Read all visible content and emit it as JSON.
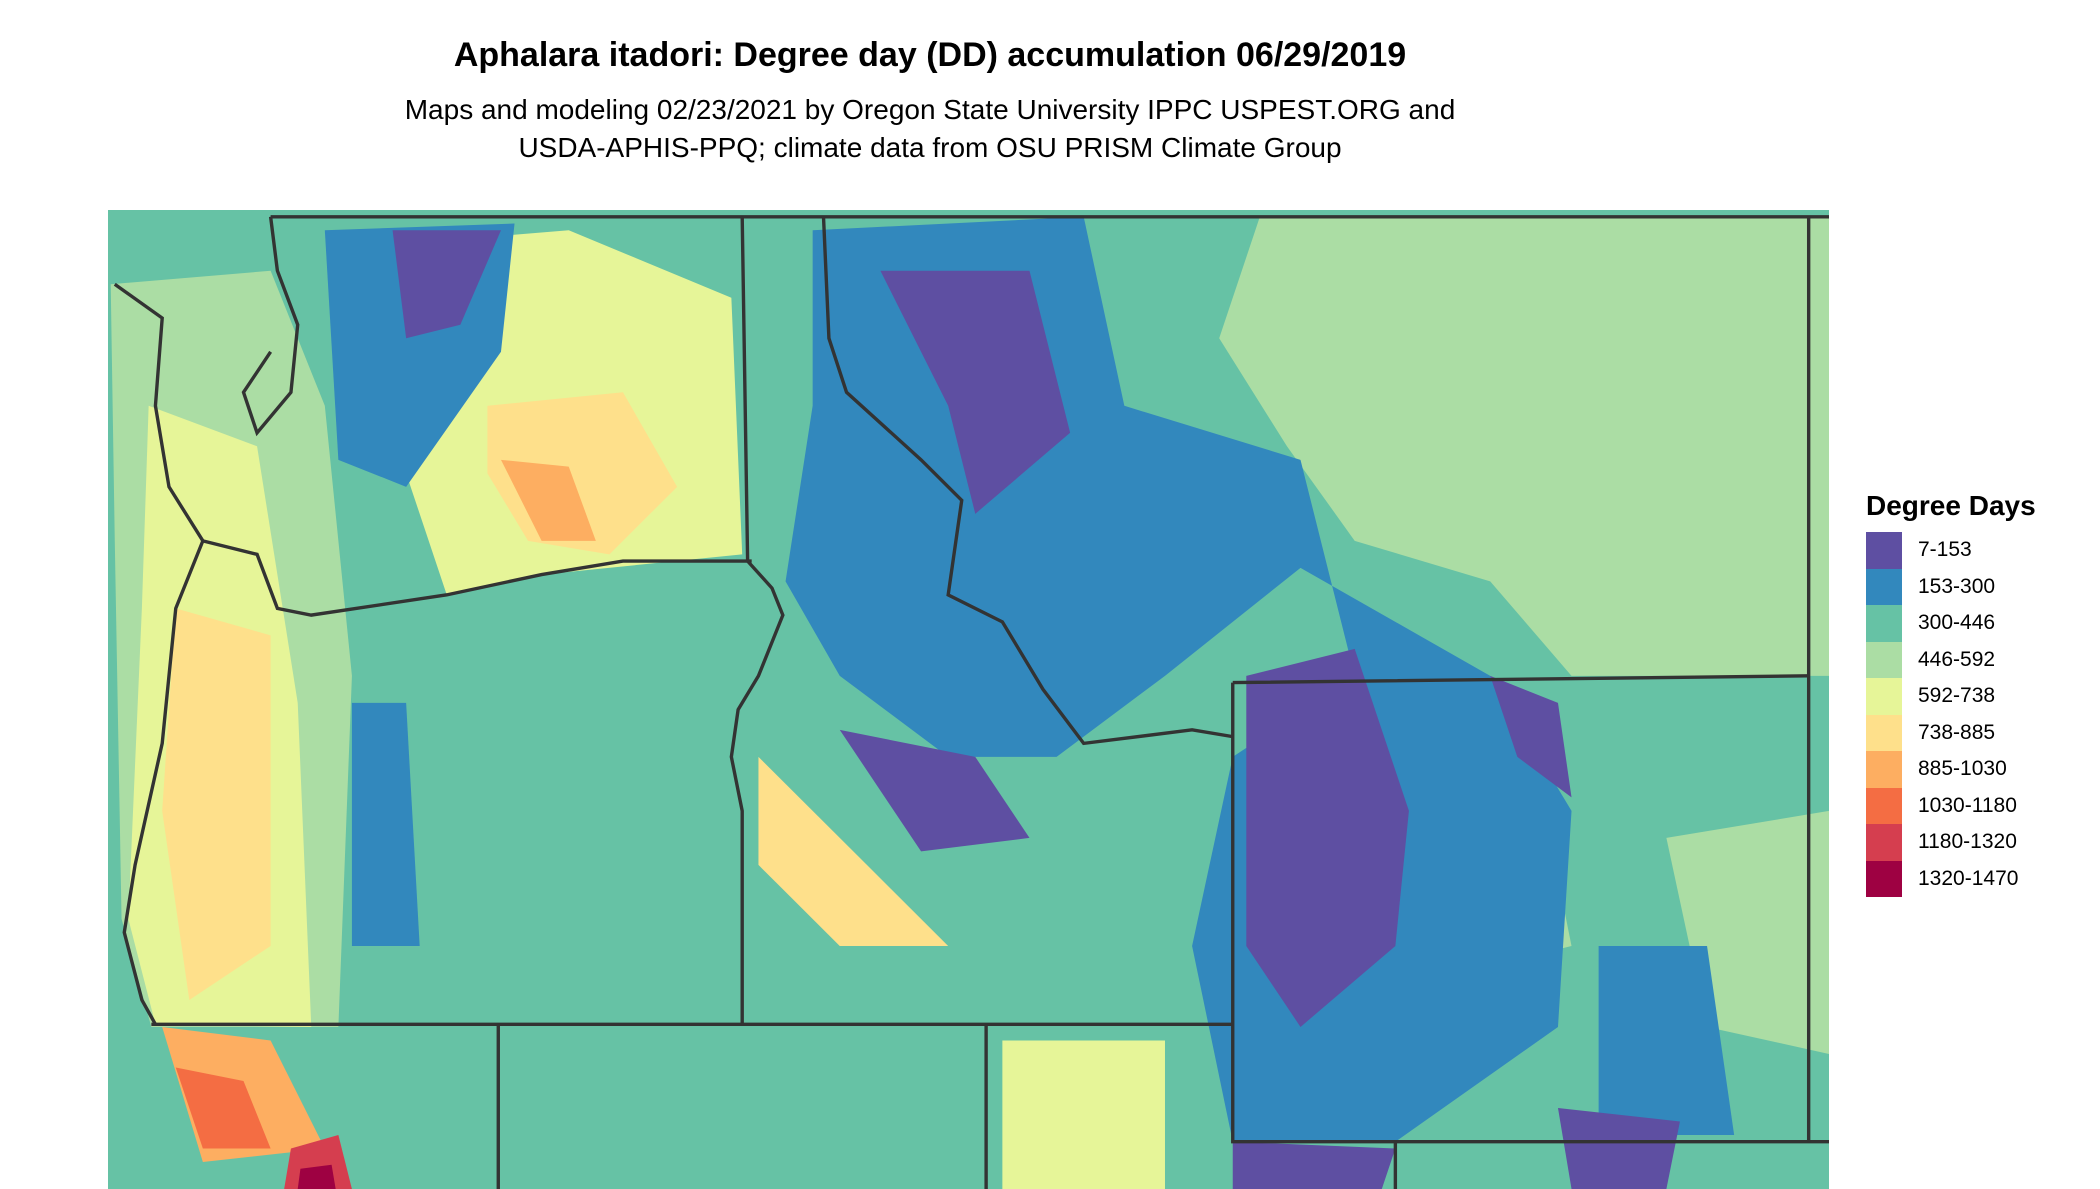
{
  "title": "Aphalara itadori: Degree day (DD) accumulation 06/29/2019",
  "subtitle_line1": "Maps and modeling 02/23/2021 by Oregon State University IPPC USPEST.ORG and",
  "subtitle_line2": "USDA-APHIS-PPQ; climate data from OSU PRISM Climate Group",
  "legend": {
    "title": "Degree Days",
    "items": [
      {
        "label": "7-153",
        "color": "#5e4fa2"
      },
      {
        "label": "153-300",
        "color": "#3288bd"
      },
      {
        "label": "300-446",
        "color": "#66c2a5"
      },
      {
        "label": "446-592",
        "color": "#abdda4"
      },
      {
        "label": "592-738",
        "color": "#e6f598"
      },
      {
        "label": "738-885",
        "color": "#fee08b"
      },
      {
        "label": "885-1030",
        "color": "#fdae61"
      },
      {
        "label": "1030-1180",
        "color": "#f46d43"
      },
      {
        "label": "1180-1320",
        "color": "#d53e4f"
      },
      {
        "label": "1320-1470",
        "color": "#9e0142"
      }
    ]
  },
  "border_color": "#333333"
}
